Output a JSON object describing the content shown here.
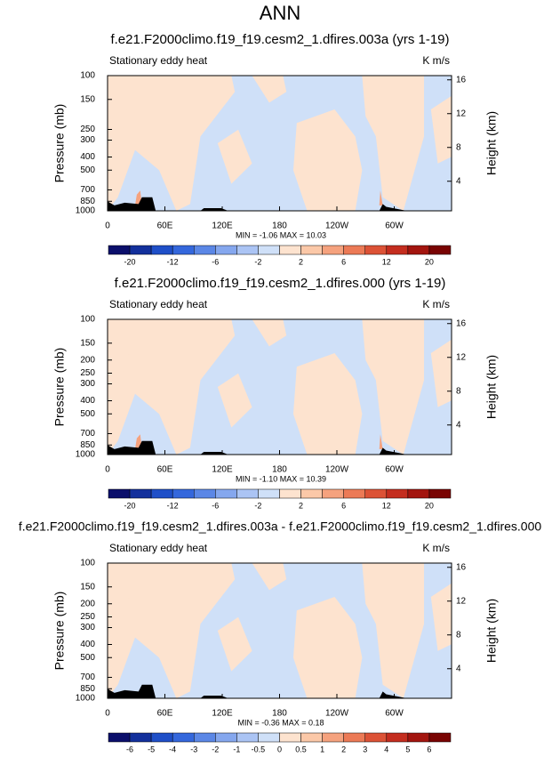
{
  "title": "ANN",
  "chart_data": [
    {
      "type": "contour",
      "title": "f.e21.F2000climo.f19_f19.cesm2_1.dfires.003a (yrs 1-19)",
      "subtitle": "Stationary eddy heat",
      "units": "K m/s",
      "ylabel": "Pressure (mb)",
      "y2label": "Height (km)",
      "xlim": [
        0,
        360
      ],
      "xticks": [
        0,
        {
          "value": 60,
          "label": "60E"
        },
        {
          "value": 120,
          "label": "120E"
        },
        180,
        {
          "value": 240,
          "label": "120W"
        },
        {
          "value": 300,
          "label": "60W"
        }
      ],
      "ylim": [
        1000,
        100
      ],
      "log_y": true,
      "yticks": [
        100,
        150,
        250,
        300,
        400,
        500,
        700,
        850,
        1000
      ],
      "y2lim": [
        0.5,
        16.5
      ],
      "y2ticks": [
        4,
        8,
        12,
        16
      ],
      "stats": "MIN =  -1.06   MAX =  10.03",
      "colorbar": {
        "colors": [
          "#0b0f6b",
          "#13309c",
          "#1f4fc8",
          "#3467dc",
          "#5b87e6",
          "#85a7ee",
          "#abc4f4",
          "#cfe0f8",
          "#fde3cf",
          "#fbc8a8",
          "#f5a27e",
          "#ec7a56",
          "#dc5236",
          "#c42d1f",
          "#a3150f",
          "#790403"
        ],
        "ticks": [
          -20,
          -12,
          -6,
          -2,
          2,
          6,
          12,
          20
        ]
      }
    },
    {
      "type": "contour",
      "title": "f.e21.F2000climo.f19_f19.cesm2_1.dfires.000 (yrs 1-19)",
      "subtitle": "Stationary eddy heat",
      "units": "K m/s",
      "ylabel": "Pressure (mb)",
      "y2label": "Height (km)",
      "xlim": [
        0,
        360
      ],
      "xticks": [
        0,
        {
          "value": 60,
          "label": "60E"
        },
        {
          "value": 120,
          "label": "120E"
        },
        180,
        {
          "value": 240,
          "label": "120W"
        },
        {
          "value": 300,
          "label": "60W"
        }
      ],
      "ylim": [
        1000,
        100
      ],
      "log_y": true,
      "yticks": [
        100,
        150,
        200,
        250,
        300,
        400,
        500,
        700,
        850,
        1000
      ],
      "y2lim": [
        0.5,
        16.5
      ],
      "y2ticks": [
        4,
        8,
        12,
        16
      ],
      "stats": "MIN =  -1.10   MAX =  10.39",
      "colorbar": {
        "colors": [
          "#0b0f6b",
          "#13309c",
          "#1f4fc8",
          "#3467dc",
          "#5b87e6",
          "#85a7ee",
          "#abc4f4",
          "#cfe0f8",
          "#fde3cf",
          "#fbc8a8",
          "#f5a27e",
          "#ec7a56",
          "#dc5236",
          "#c42d1f",
          "#a3150f",
          "#790403"
        ],
        "ticks": [
          -20,
          -12,
          -6,
          -2,
          2,
          6,
          12,
          20
        ]
      }
    },
    {
      "type": "contour",
      "title": "f.e21.F2000climo.f19_f19.cesm2_1.dfires.003a - f.e21.F2000climo.f19_f19.cesm2_1.dfires.000",
      "subtitle": "Stationary eddy heat",
      "units": "K m/s",
      "ylabel": "Pressure (mb)",
      "y2label": "Height (km)",
      "xlim": [
        0,
        360
      ],
      "xticks": [
        0,
        {
          "value": 60,
          "label": "60E"
        },
        {
          "value": 120,
          "label": "120E"
        },
        180,
        {
          "value": 240,
          "label": "120W"
        },
        {
          "value": 300,
          "label": "60W"
        }
      ],
      "ylim": [
        1000,
        100
      ],
      "log_y": true,
      "yticks": [
        100,
        150,
        200,
        250,
        300,
        400,
        500,
        700,
        850,
        1000
      ],
      "y2lim": [
        0.5,
        16.5
      ],
      "y2ticks": [
        4,
        8,
        12,
        16
      ],
      "stats": "MIN =  -0.36   MAX =  0.18",
      "colorbar": {
        "colors": [
          "#0b0f6b",
          "#13309c",
          "#1f4fc8",
          "#3467dc",
          "#5b87e6",
          "#85a7ee",
          "#abc4f4",
          "#cfe0f8",
          "#fde3cf",
          "#fbc8a8",
          "#f5a27e",
          "#ec7a56",
          "#dc5236",
          "#c42d1f",
          "#a3150f",
          "#790403"
        ],
        "ticks": [
          -6,
          -5,
          -4,
          -3,
          -2,
          -1,
          -0.5,
          0,
          0.5,
          1,
          2,
          3,
          4,
          5,
          6
        ]
      }
    }
  ]
}
